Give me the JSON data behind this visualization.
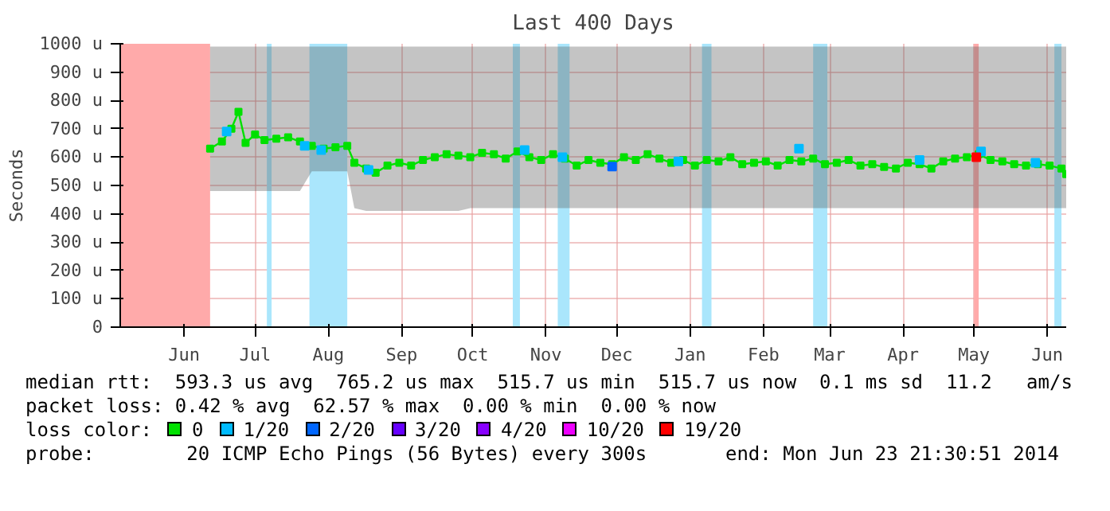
{
  "chart_data": {
    "type": "line",
    "title": "Last 400 Days",
    "ylabel": "Seconds",
    "xlim": [
      "2013-05-19",
      "2014-06-23"
    ],
    "xticks": [
      {
        "value": "2013-06-15",
        "label": "Jun"
      },
      {
        "value": "2013-07-15",
        "label": "Jul"
      },
      {
        "value": "2013-08-15",
        "label": "Aug"
      },
      {
        "value": "2013-09-15",
        "label": "Sep"
      },
      {
        "value": "2013-10-15",
        "label": "Oct"
      },
      {
        "value": "2013-11-15",
        "label": "Nov"
      },
      {
        "value": "2013-12-15",
        "label": "Dec"
      },
      {
        "value": "2014-01-15",
        "label": "Jan"
      },
      {
        "value": "2014-02-15",
        "label": "Feb"
      },
      {
        "value": "2014-03-15",
        "label": "Mar"
      },
      {
        "value": "2014-04-15",
        "label": "Apr"
      },
      {
        "value": "2014-05-15",
        "label": "May"
      },
      {
        "value": "2014-06-15",
        "label": "Jun"
      }
    ],
    "ylim": [
      0,
      1000
    ],
    "yticks": [
      0,
      {
        "value": 100,
        "label": "100 u"
      },
      {
        "value": 200,
        "label": "200 u"
      },
      {
        "value": 300,
        "label": "300 u"
      },
      {
        "value": 400,
        "label": "400 u"
      },
      {
        "value": 500,
        "label": "500 u"
      },
      {
        "value": 600,
        "label": "600 u"
      },
      {
        "value": 700,
        "label": "700 u"
      },
      {
        "value": 800,
        "label": "800 u"
      },
      {
        "value": 900,
        "label": "900 u"
      },
      {
        "value": 1000,
        "label": "1000 u"
      }
    ],
    "grid": true,
    "legend": "bottom",
    "legend_title": "loss color:",
    "marker": "square",
    "bands": [
      {
        "axis": "x",
        "from": "2013-05-19",
        "to": "2013-06-26",
        "color": "#ffaaaa"
      },
      {
        "axis": "x",
        "from": "2013-08-07",
        "to": "2013-08-23",
        "color": "#aae6fc"
      },
      {
        "axis": "x",
        "from": "2013-07-20",
        "to": "2013-07-22",
        "color": "#aae6fc"
      },
      {
        "axis": "x",
        "from": "2013-11-01",
        "to": "2013-11-04",
        "color": "#aae6fc"
      },
      {
        "axis": "x",
        "from": "2013-11-20",
        "to": "2013-11-25",
        "color": "#aae6fc"
      },
      {
        "axis": "x",
        "from": "2014-01-20",
        "to": "2014-01-24",
        "color": "#aae6fc"
      },
      {
        "axis": "x",
        "from": "2014-03-08",
        "to": "2014-03-14",
        "color": "#aae6fc"
      },
      {
        "axis": "x",
        "from": "2014-05-15",
        "to": "2014-05-17",
        "color": "#ffaaaa"
      },
      {
        "axis": "x",
        "from": "2014-06-18",
        "to": "2014-06-21",
        "color": "#aae6fc"
      }
    ],
    "series": [
      {
        "name": "0",
        "color": "#00e000",
        "x": [
          "2013-06-26",
          "2013-07-01",
          "2013-07-05",
          "2013-07-08",
          "2013-07-11",
          "2013-07-15",
          "2013-07-19",
          "2013-07-24",
          "2013-07-29",
          "2013-08-03",
          "2013-08-08",
          "2013-08-13",
          "2013-08-18",
          "2013-08-23",
          "2013-08-26",
          "2013-08-31",
          "2013-09-04",
          "2013-09-09",
          "2013-09-14",
          "2013-09-19",
          "2013-09-24",
          "2013-09-29",
          "2013-10-04",
          "2013-10-09",
          "2013-10-14",
          "2013-10-19",
          "2013-10-24",
          "2013-10-29",
          "2013-11-03",
          "2013-11-08",
          "2013-11-13",
          "2013-11-18",
          "2013-11-23",
          "2013-11-28",
          "2013-12-03",
          "2013-12-08",
          "2013-12-13",
          "2013-12-18",
          "2013-12-23",
          "2013-12-28",
          "2014-01-02",
          "2014-01-07",
          "2014-01-12",
          "2014-01-17",
          "2014-01-22",
          "2014-01-27",
          "2014-02-01",
          "2014-02-06",
          "2014-02-11",
          "2014-02-16",
          "2014-02-21",
          "2014-02-26",
          "2014-03-03",
          "2014-03-08",
          "2014-03-13",
          "2014-03-18",
          "2014-03-23",
          "2014-03-28",
          "2014-04-02",
          "2014-04-07",
          "2014-04-12",
          "2014-04-17",
          "2014-04-22",
          "2014-04-27",
          "2014-05-02",
          "2014-05-07",
          "2014-05-12",
          "2014-05-17",
          "2014-05-22",
          "2014-05-27",
          "2014-06-01",
          "2014-06-06",
          "2014-06-11",
          "2014-06-16",
          "2014-06-21",
          "2014-06-23"
        ],
        "values": [
          630,
          655,
          700,
          760,
          650,
          680,
          660,
          665,
          670,
          655,
          640,
          630,
          635,
          640,
          580,
          560,
          545,
          570,
          580,
          570,
          590,
          600,
          610,
          605,
          600,
          615,
          610,
          595,
          620,
          600,
          590,
          610,
          595,
          570,
          590,
          580,
          575,
          600,
          590,
          610,
          595,
          580,
          590,
          570,
          590,
          585,
          600,
          575,
          580,
          585,
          570,
          590,
          585,
          595,
          575,
          580,
          590,
          570,
          575,
          565,
          560,
          580,
          575,
          560,
          585,
          595,
          600,
          610,
          590,
          585,
          575,
          570,
          575,
          570,
          560,
          540
        ],
        "lower": [
          480,
          480,
          480,
          480,
          480,
          480,
          480,
          480,
          480,
          480,
          550,
          550,
          550,
          550,
          420,
          410,
          410,
          410,
          410,
          410,
          410,
          410,
          410,
          410,
          420,
          420,
          420,
          420,
          420,
          420,
          420,
          420,
          420,
          420,
          420,
          420,
          420,
          420,
          420,
          420,
          420,
          420,
          420,
          420,
          420,
          420,
          420,
          420,
          420,
          420,
          420,
          420,
          420,
          420,
          420,
          420,
          420,
          420,
          420,
          420,
          420,
          420,
          420,
          420,
          420,
          420,
          420,
          420,
          420,
          420,
          420,
          420,
          420,
          420,
          420,
          420
        ],
        "upper": [
          990,
          990,
          990,
          990,
          990,
          990,
          990,
          990,
          990,
          990,
          990,
          990,
          990,
          990,
          990,
          990,
          990,
          990,
          990,
          990,
          990,
          990,
          990,
          990,
          990,
          990,
          990,
          990,
          990,
          990,
          990,
          990,
          990,
          990,
          990,
          990,
          990,
          990,
          990,
          990,
          990,
          990,
          990,
          990,
          990,
          990,
          990,
          990,
          990,
          990,
          990,
          990,
          990,
          990,
          990,
          990,
          990,
          990,
          990,
          990,
          990,
          990,
          990,
          990,
          990,
          990,
          990,
          990,
          990,
          990,
          990,
          990,
          990,
          990,
          990,
          990
        ]
      },
      {
        "name": "1/20",
        "color": "#00bbff",
        "type": "scatter",
        "x": [
          "2013-07-03",
          "2013-08-05",
          "2013-08-12",
          "2013-09-01",
          "2013-11-06",
          "2013-11-22",
          "2014-01-10",
          "2014-03-02",
          "2014-04-22",
          "2014-05-18",
          "2014-06-10"
        ],
        "values": [
          690,
          640,
          625,
          555,
          625,
          600,
          585,
          630,
          590,
          620,
          580
        ]
      },
      {
        "name": "2/20",
        "color": "#0066ff",
        "type": "scatter",
        "x": [
          "2013-12-13"
        ],
        "values": [
          567
        ]
      },
      {
        "name": "3/20",
        "color": "#6600ff"
      },
      {
        "name": "4/20",
        "color": "#8800ff"
      },
      {
        "name": "10/20",
        "color": "#ee00ff"
      },
      {
        "name": "19/20",
        "color": "#ff0000",
        "type": "scatter",
        "x": [
          "2014-05-16"
        ],
        "values": [
          600
        ]
      }
    ],
    "annotations": [
      "median rtt:  593.3 us avg  765.2 us max  515.7 us min  515.7 us now  0.1 ms sd  11.2   am/s",
      "packet loss: 0.42 % avg  62.57 % max  0.00 % min  0.00 % now",
      "probe:        20 ICMP Echo Pings (56 Bytes) every 300s",
      "end: Mon Jun 23 21:30:51 2014"
    ]
  }
}
